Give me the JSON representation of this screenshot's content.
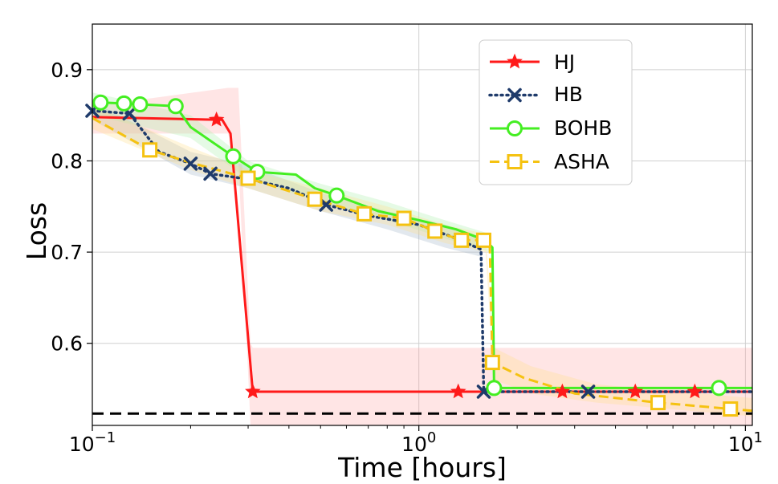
{
  "chart_data": {
    "type": "line",
    "title": "",
    "xlabel": "Time [hours]",
    "ylabel": "Loss",
    "xscale": "log",
    "xlim": [
      0.1,
      10.5
    ],
    "ylim": [
      0.51,
      0.95
    ],
    "yticks": [
      {
        "value": 0.6,
        "label": "0.6"
      },
      {
        "value": 0.7,
        "label": "0.7"
      },
      {
        "value": 0.8,
        "label": "0.8"
      },
      {
        "value": 0.9,
        "label": "0.9"
      }
    ],
    "xticks": [
      {
        "value": 0.1,
        "base": "10",
        "exp": "−1"
      },
      {
        "value": 1,
        "base": "10",
        "exp": "0"
      },
      {
        "value": 10,
        "base": "10",
        "exp": "1"
      }
    ],
    "grid": true,
    "legend": {
      "position": "top-right"
    },
    "baseline": {
      "value": 0.523,
      "style": "dashed",
      "color": "#000000"
    },
    "series": [
      {
        "name": "HJ",
        "color": "#ff1a1a",
        "marker": "star",
        "dash": "solid",
        "x": [
          0.1,
          0.25,
          0.265,
          0.31,
          1.3,
          1.6,
          2.75,
          4.6,
          7.0,
          10.5
        ],
        "y": [
          0.848,
          0.845,
          0.83,
          0.547,
          0.547,
          0.547,
          0.547,
          0.547,
          0.547,
          0.547
        ],
        "markers_x": [
          0.24,
          0.31,
          1.32,
          2.75,
          4.6,
          7.0
        ],
        "band": {
          "color": "#ff9999",
          "opacity": 0.25,
          "x": [
            0.1,
            0.26,
            0.28,
            0.305,
            0.31,
            10.5
          ],
          "upper": [
            0.86,
            0.88,
            0.88,
            0.6,
            0.595,
            0.595
          ],
          "lower": [
            0.83,
            0.83,
            0.8,
            0.51,
            0.51,
            0.51
          ]
        }
      },
      {
        "name": "HB",
        "color": "#1f3b6b",
        "marker": "x",
        "dash": "dotted",
        "x": [
          0.1,
          0.13,
          0.16,
          0.2,
          0.23,
          0.3,
          0.4,
          0.52,
          0.7,
          1.0,
          1.3,
          1.55,
          1.58,
          1.6,
          3.3,
          10.5
        ],
        "y": [
          0.855,
          0.852,
          0.81,
          0.797,
          0.786,
          0.78,
          0.77,
          0.752,
          0.74,
          0.73,
          0.715,
          0.703,
          0.547,
          0.547,
          0.547,
          0.547
        ],
        "markers_x": [
          0.1,
          0.13,
          0.2,
          0.23,
          0.52,
          1.58,
          3.3
        ],
        "band": {
          "color": "#9fb3c8",
          "opacity": 0.3,
          "x": [
            0.1,
            0.2,
            0.3,
            0.5,
            0.8,
            1.2,
            1.55
          ],
          "upper": [
            0.865,
            0.81,
            0.795,
            0.765,
            0.745,
            0.73,
            0.715
          ],
          "lower": [
            0.845,
            0.785,
            0.77,
            0.745,
            0.725,
            0.705,
            0.695
          ]
        }
      },
      {
        "name": "BOHB",
        "color": "#44ee22",
        "marker": "circle",
        "dash": "solid",
        "x": [
          0.1,
          0.106,
          0.125,
          0.14,
          0.18,
          0.2,
          0.27,
          0.32,
          0.42,
          0.48,
          0.56,
          0.75,
          1.0,
          1.3,
          1.6,
          1.68,
          1.7,
          8.3,
          10.5
        ],
        "y": [
          0.86,
          0.864,
          0.863,
          0.862,
          0.86,
          0.837,
          0.805,
          0.788,
          0.785,
          0.77,
          0.762,
          0.745,
          0.735,
          0.725,
          0.713,
          0.705,
          0.551,
          0.551,
          0.551
        ],
        "markers_x": [
          0.106,
          0.125,
          0.14,
          0.18,
          0.27,
          0.32,
          0.56,
          1.7,
          8.3
        ],
        "band": {
          "color": "#aaf0aa",
          "opacity": 0.3,
          "x": [
            0.1,
            0.2,
            0.3,
            0.5,
            0.8,
            1.2,
            1.65
          ],
          "upper": [
            0.875,
            0.85,
            0.8,
            0.775,
            0.755,
            0.735,
            0.72
          ],
          "lower": [
            0.85,
            0.825,
            0.78,
            0.755,
            0.735,
            0.715,
            0.7
          ]
        }
      },
      {
        "name": "ASHA",
        "color": "#f5c211",
        "marker": "square",
        "dash": "dashed",
        "x": [
          0.1,
          0.15,
          0.2,
          0.3,
          0.48,
          0.68,
          0.9,
          1.12,
          1.35,
          1.58,
          1.65,
          1.68,
          2.1,
          3.0,
          5.4,
          9.0,
          10.5
        ],
        "y": [
          0.847,
          0.812,
          0.798,
          0.781,
          0.758,
          0.742,
          0.737,
          0.723,
          0.713,
          0.713,
          0.705,
          0.579,
          0.562,
          0.545,
          0.535,
          0.528,
          0.526
        ],
        "markers_x": [
          0.15,
          0.3,
          0.48,
          0.68,
          0.9,
          1.12,
          1.35,
          1.58,
          1.68,
          5.4,
          9.0
        ],
        "band": {
          "color": "#ffdd88",
          "opacity": 0.3,
          "x": [
            0.1,
            0.2,
            0.3,
            0.5,
            0.8,
            1.2,
            1.6,
            1.7,
            2.2,
            3.5,
            10.5
          ],
          "upper": [
            0.86,
            0.815,
            0.79,
            0.77,
            0.75,
            0.73,
            0.72,
            0.595,
            0.575,
            0.555,
            0.54
          ],
          "lower": [
            0.835,
            0.79,
            0.77,
            0.745,
            0.73,
            0.71,
            0.7,
            0.56,
            0.545,
            0.535,
            0.52
          ]
        }
      }
    ]
  }
}
